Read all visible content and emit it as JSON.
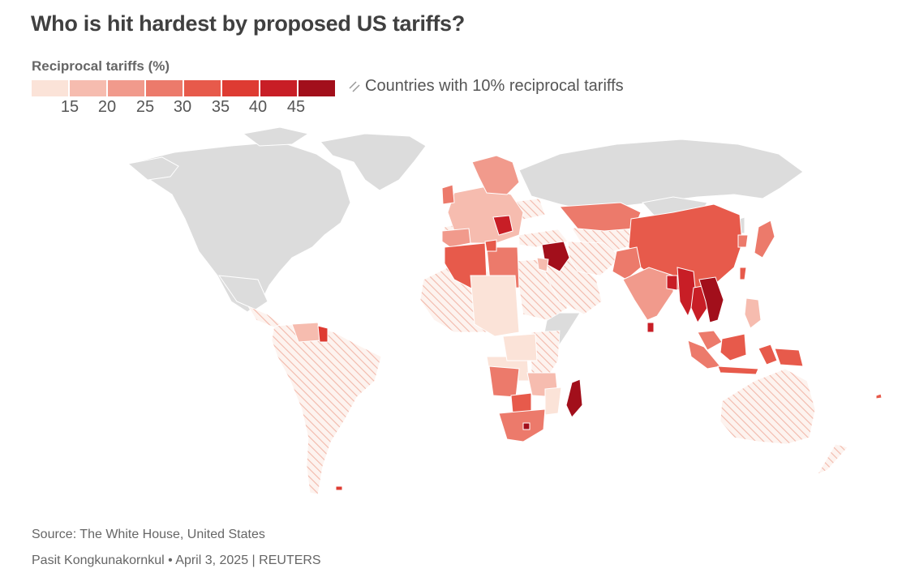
{
  "title": "Who is hit hardest by proposed US tariffs?",
  "legend": {
    "title": "Reciprocal tariffs (%)",
    "ticks": [
      "15",
      "20",
      "25",
      "30",
      "35",
      "40",
      "45"
    ],
    "colors": [
      "#fbe3d8",
      "#f6bcaf",
      "#f19a8c",
      "#ec7a6b",
      "#e75a4b",
      "#de3b32",
      "#c81e26",
      "#a20f1b"
    ],
    "hatch_label": "Countries with 10% reciprocal tariffs",
    "hatch_color": "#f2b8aa"
  },
  "map": {
    "base_color": "#dcdcdc",
    "border_color": "#ffffff"
  },
  "source": "Source: The White House, United States",
  "byline": "Pasit Kongkunakornkul • April 3, 2025 | REUTERS"
}
